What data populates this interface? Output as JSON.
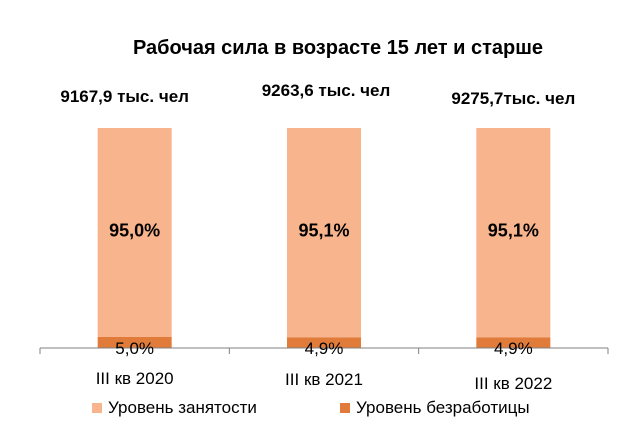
{
  "chart_data": {
    "type": "bar",
    "stacked": true,
    "title": "Рабочая сила в возрасте 15 лет и старше",
    "categories": [
      "III кв 2020",
      "III кв 2021",
      "III кв 2022"
    ],
    "totals": [
      "9167,9 тыс. чел",
      "9263,6 тыс. чел",
      "9275,7тыс. чел"
    ],
    "series": [
      {
        "name": "Уровень безработицы",
        "values": [
          5.0,
          4.9,
          4.9
        ],
        "labels": [
          "5,0%",
          "4,9%",
          "4,9%"
        ],
        "color": "#E07B39"
      },
      {
        "name": "Уровень занятости",
        "values": [
          95.0,
          95.1,
          95.1
        ],
        "labels": [
          "95,0%",
          "95,1%",
          "95,1%"
        ],
        "color": "#F8B48C"
      }
    ],
    "ylim": [
      0,
      100
    ],
    "grid": false,
    "legend": "bottom"
  }
}
